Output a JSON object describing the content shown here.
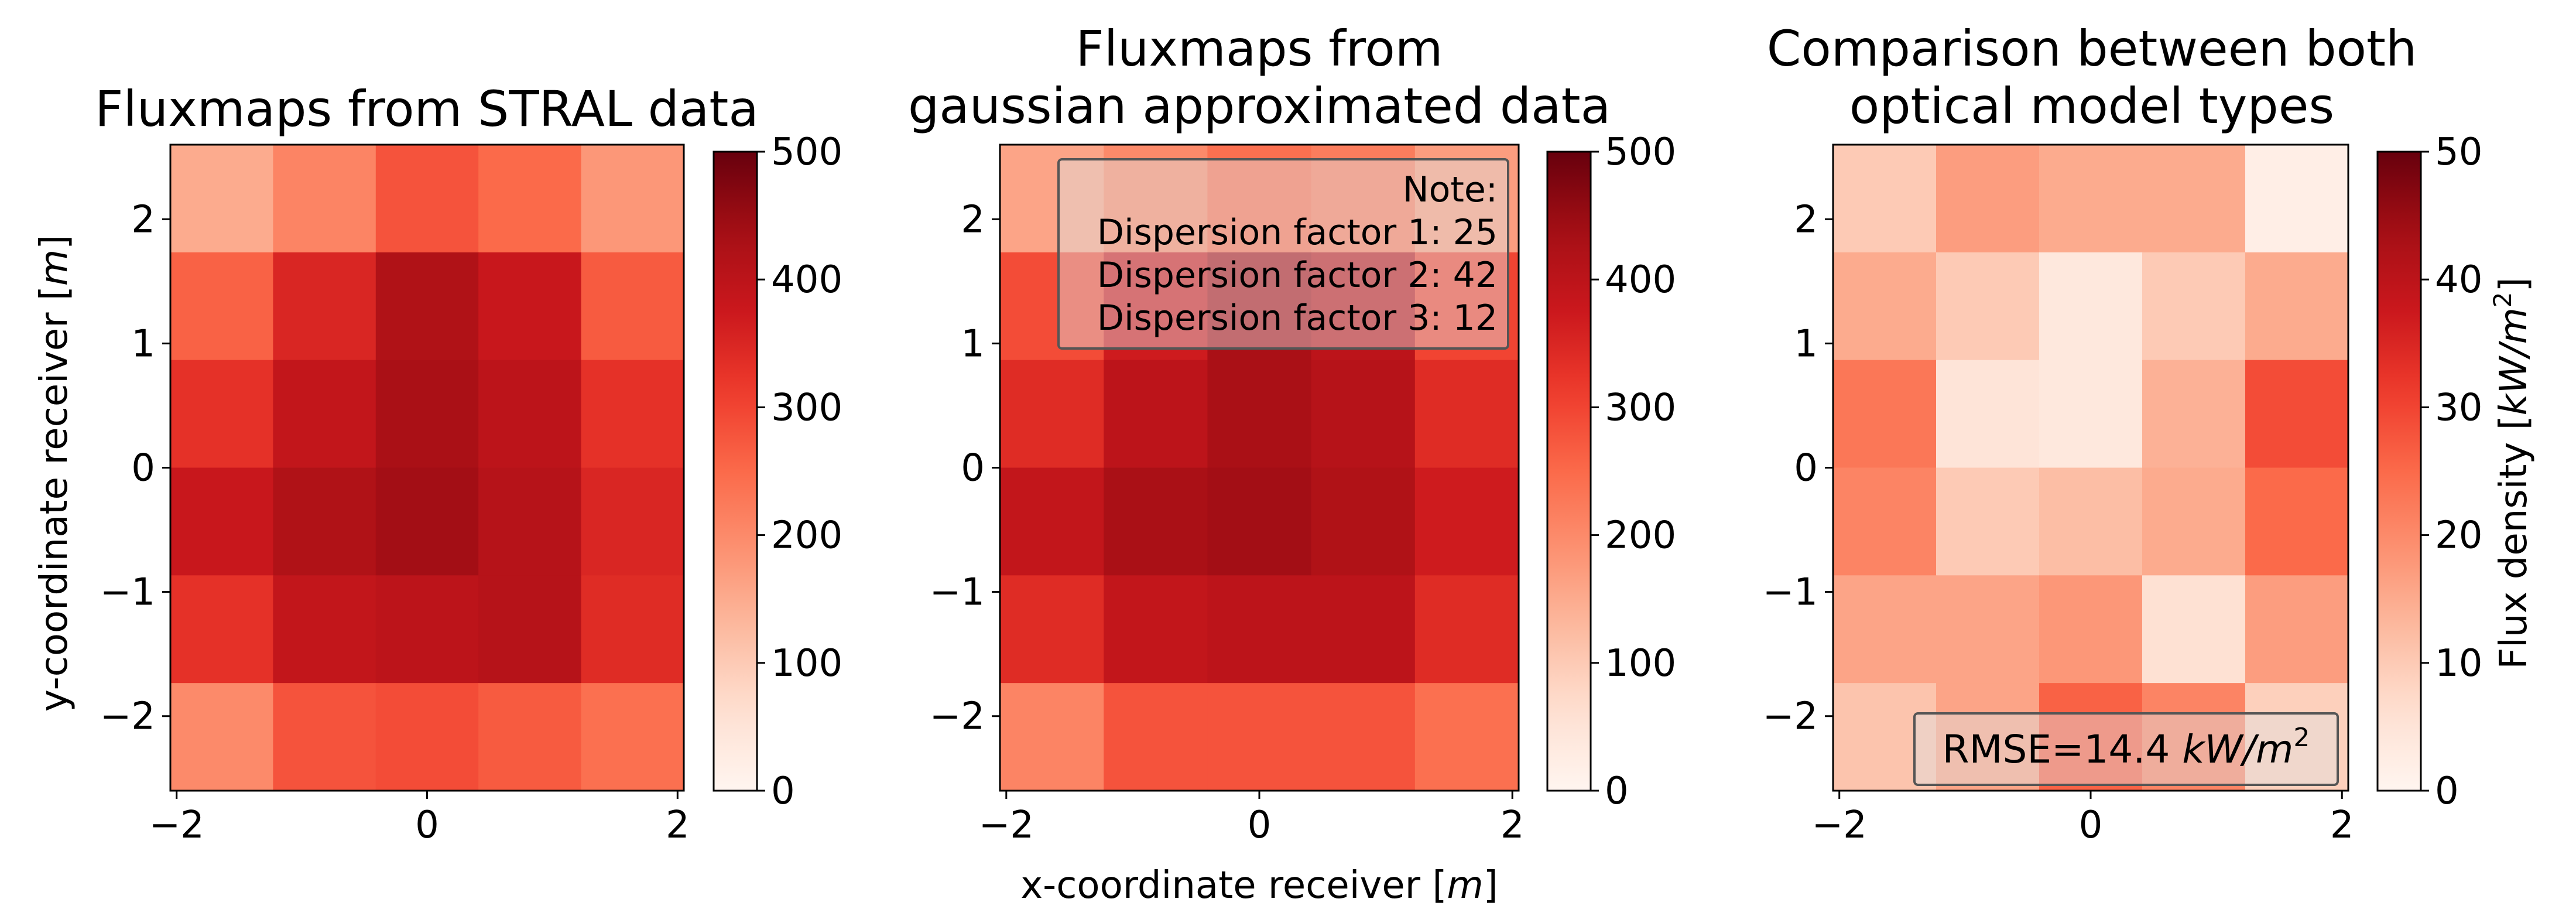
{
  "figure": {
    "xlabel_prefix": "x-coordinate receiver [",
    "xlabel_unit": "m",
    "xlabel_suffix": "]",
    "ylabel_prefix": "y-coordinate receiver [",
    "ylabel_unit": "m",
    "ylabel_suffix": "]",
    "colorbar_label_prefix": "Flux density [",
    "colorbar_label_unit": "kW/m",
    "colorbar_label_sup": "2",
    "colorbar_label_suffix": "]",
    "colormap": "Reds"
  },
  "chart_data": [
    {
      "type": "heatmap",
      "title": [
        "Fluxmaps from STRAL data"
      ],
      "x_ticks": [
        "−2",
        "0",
        "2"
      ],
      "y_ticks": [
        "2",
        "1",
        "0",
        "−1",
        "−2"
      ],
      "xlim": [
        -2.05,
        2.05
      ],
      "ylim": [
        -2.6,
        2.6
      ],
      "value_range": [
        0,
        500
      ],
      "colorbar_ticks": [
        "0",
        "100",
        "200",
        "300",
        "400",
        "500"
      ],
      "grid": [
        [
          150,
          210,
          280,
          250,
          180
        ],
        [
          260,
          350,
          420,
          380,
          270
        ],
        [
          330,
          390,
          430,
          400,
          330
        ],
        [
          380,
          420,
          440,
          410,
          350
        ],
        [
          330,
          390,
          400,
          410,
          340
        ],
        [
          200,
          280,
          290,
          270,
          240
        ]
      ]
    },
    {
      "type": "heatmap",
      "title": [
        "Fluxmaps from",
        "gaussian approximated data"
      ],
      "x_ticks": [
        "−2",
        "0",
        "2"
      ],
      "y_ticks": [
        "2",
        "1",
        "0",
        "−1",
        "−2"
      ],
      "xlim": [
        -2.05,
        2.05
      ],
      "ylim": [
        -2.6,
        2.6
      ],
      "value_range": [
        0,
        500
      ],
      "colorbar_ticks": [
        "0",
        "100",
        "200",
        "300",
        "400",
        "500"
      ],
      "annotation": {
        "lines": [
          "Note:",
          "Dispersion factor 1: 25",
          "Dispersion factor 2: 42",
          "Dispersion factor 3: 12"
        ]
      },
      "grid": [
        [
          160,
          200,
          240,
          220,
          170
        ],
        [
          290,
          370,
          430,
          400,
          300
        ],
        [
          340,
          400,
          430,
          410,
          340
        ],
        [
          390,
          430,
          440,
          420,
          370
        ],
        [
          340,
          390,
          400,
          400,
          340
        ],
        [
          210,
          280,
          280,
          280,
          240
        ]
      ]
    },
    {
      "type": "heatmap",
      "title": [
        "Comparison between both",
        "optical model types"
      ],
      "x_ticks": [
        "−2",
        "0",
        "2"
      ],
      "y_ticks": [
        "2",
        "1",
        "0",
        "−1",
        "−2"
      ],
      "xlim": [
        -2.05,
        2.05
      ],
      "ylim": [
        -2.6,
        2.6
      ],
      "value_range": [
        0,
        50
      ],
      "colorbar_ticks": [
        "0",
        "10",
        "20",
        "30",
        "40",
        "50"
      ],
      "annotation": {
        "prefix": "RMSE=14.4 ",
        "unit": "kW/m",
        "sup": "2"
      },
      "grid": [
        [
          10,
          17,
          15,
          15,
          2
        ],
        [
          15,
          10,
          4,
          10,
          15
        ],
        [
          23,
          5,
          4,
          14,
          29
        ],
        [
          21,
          10,
          12,
          15,
          25
        ],
        [
          16,
          16,
          18,
          6,
          17
        ],
        [
          11,
          16,
          26,
          21,
          9
        ]
      ]
    }
  ]
}
